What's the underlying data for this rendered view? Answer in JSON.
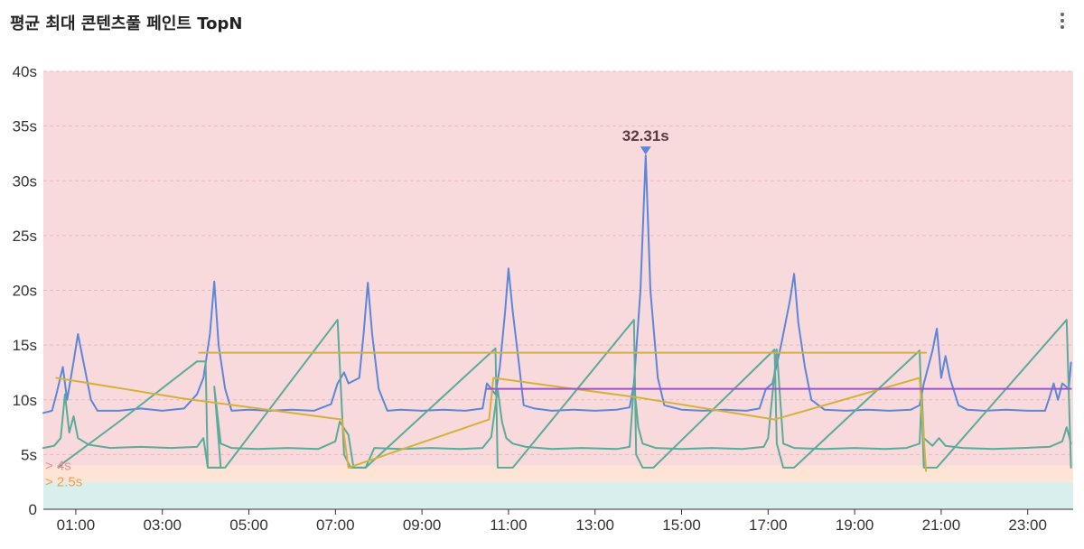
{
  "header": {
    "title": "평균 최대 콘텐츠풀 페인트 TopN"
  },
  "menu": {
    "icon": "more-vertical-icon"
  },
  "chart_data": {
    "type": "line",
    "title": "평균 최대 콘텐츠풀 페인트 TopN",
    "xlabel": "",
    "ylabel": "",
    "x_unit": "hour",
    "xlim": [
      0.25,
      24.05
    ],
    "ylim": [
      0,
      40
    ],
    "y_ticks": [
      "0",
      "5s",
      "10s",
      "15s",
      "20s",
      "25s",
      "30s",
      "35s",
      "40s"
    ],
    "x_ticks": [
      "01:00",
      "03:00",
      "05:00",
      "07:00",
      "09:00",
      "11:00",
      "13:00",
      "15:00",
      "17:00",
      "19:00",
      "21:00",
      "23:00"
    ],
    "grid": true,
    "bands": [
      {
        "from": 0,
        "to": 2.5,
        "color": "#d8efed"
      },
      {
        "from": 2.5,
        "to": 4,
        "color": "#fde4d4",
        "label": "> 2.5s",
        "label_color": "#f0a04a"
      },
      {
        "from": 4,
        "to": 40,
        "color": "#f8dadd",
        "label": "> 4s",
        "label_color": "#e8908f"
      }
    ],
    "peak_marker": {
      "label": "32.31s",
      "x": 14.17,
      "y": 32.31,
      "color": "#5b86d9"
    },
    "series": [
      {
        "color": "#5b86d9",
        "values": [
          [
            0.25,
            8.8
          ],
          [
            0.45,
            9.0
          ],
          [
            0.55,
            10.5
          ],
          [
            0.7,
            13.0
          ],
          [
            0.8,
            10.0
          ],
          [
            0.95,
            13.5
          ],
          [
            1.05,
            16.0
          ],
          [
            1.2,
            13.0
          ],
          [
            1.35,
            10.0
          ],
          [
            1.5,
            9.0
          ],
          [
            2.0,
            9.0
          ],
          [
            2.5,
            9.2
          ],
          [
            3.0,
            9.0
          ],
          [
            3.5,
            9.2
          ],
          [
            3.8,
            10.5
          ],
          [
            3.95,
            12.0
          ],
          [
            4.1,
            16.0
          ],
          [
            4.2,
            20.8
          ],
          [
            4.3,
            15.0
          ],
          [
            4.45,
            11.0
          ],
          [
            4.6,
            9.0
          ],
          [
            5.0,
            9.1
          ],
          [
            5.5,
            9.0
          ],
          [
            6.0,
            9.1
          ],
          [
            6.5,
            9.0
          ],
          [
            6.9,
            9.6
          ],
          [
            7.05,
            11.5
          ],
          [
            7.2,
            12.5
          ],
          [
            7.3,
            11.5
          ],
          [
            7.55,
            12.0
          ],
          [
            7.65,
            16.0
          ],
          [
            7.75,
            20.7
          ],
          [
            7.85,
            16.0
          ],
          [
            8.0,
            11.0
          ],
          [
            8.2,
            9.0
          ],
          [
            8.5,
            9.1
          ],
          [
            9.0,
            9.0
          ],
          [
            9.5,
            9.1
          ],
          [
            10.0,
            9.0
          ],
          [
            10.4,
            9.2
          ],
          [
            10.5,
            11.5
          ],
          [
            10.6,
            11.0
          ],
          [
            10.7,
            10.5
          ],
          [
            10.8,
            13.0
          ],
          [
            10.92,
            18.0
          ],
          [
            11.0,
            22.0
          ],
          [
            11.1,
            18.0
          ],
          [
            11.25,
            13.0
          ],
          [
            11.35,
            9.5
          ],
          [
            11.6,
            9.2
          ],
          [
            12.0,
            9.0
          ],
          [
            12.5,
            9.1
          ],
          [
            13.0,
            9.0
          ],
          [
            13.5,
            9.1
          ],
          [
            13.8,
            9.3
          ],
          [
            13.9,
            11.5
          ],
          [
            14.05,
            20.0
          ],
          [
            14.17,
            32.31
          ],
          [
            14.28,
            20.0
          ],
          [
            14.45,
            12.0
          ],
          [
            14.6,
            9.5
          ],
          [
            15.0,
            9.1
          ],
          [
            15.5,
            9.0
          ],
          [
            16.0,
            9.1
          ],
          [
            16.5,
            9.0
          ],
          [
            16.8,
            9.2
          ],
          [
            16.95,
            11.0
          ],
          [
            17.1,
            11.5
          ],
          [
            17.3,
            15.0
          ],
          [
            17.5,
            19.0
          ],
          [
            17.6,
            21.5
          ],
          [
            17.7,
            17.0
          ],
          [
            17.85,
            13.0
          ],
          [
            18.0,
            10.0
          ],
          [
            18.3,
            9.1
          ],
          [
            18.8,
            9.0
          ],
          [
            19.3,
            9.1
          ],
          [
            19.8,
            9.0
          ],
          [
            20.3,
            9.1
          ],
          [
            20.5,
            9.5
          ],
          [
            20.6,
            11.5
          ],
          [
            20.8,
            14.5
          ],
          [
            20.9,
            16.5
          ],
          [
            21.0,
            12.0
          ],
          [
            21.1,
            14.0
          ],
          [
            21.2,
            12.0
          ],
          [
            21.4,
            9.5
          ],
          [
            21.6,
            9.1
          ],
          [
            22.0,
            9.0
          ],
          [
            22.5,
            9.1
          ],
          [
            23.0,
            9.0
          ],
          [
            23.4,
            9.0
          ],
          [
            23.5,
            10.2
          ],
          [
            23.6,
            11.5
          ],
          [
            23.7,
            10.0
          ],
          [
            23.8,
            11.5
          ],
          [
            23.95,
            11.0
          ],
          [
            24.0,
            13.4
          ]
        ]
      },
      {
        "color": "#5aab98",
        "values": [
          [
            0.25,
            5.6
          ],
          [
            0.5,
            5.8
          ],
          [
            0.65,
            6.5
          ],
          [
            0.75,
            10.5
          ],
          [
            0.85,
            7.0
          ],
          [
            0.95,
            8.5
          ],
          [
            1.05,
            6.5
          ],
          [
            1.3,
            5.9
          ],
          [
            1.8,
            5.6
          ],
          [
            2.5,
            5.7
          ],
          [
            3.2,
            5.6
          ],
          [
            3.8,
            5.7
          ],
          [
            3.95,
            6.5
          ],
          [
            4.05,
            3.8
          ],
          [
            4.35,
            3.8
          ],
          [
            4.2,
            11.2
          ],
          [
            4.35,
            6.0
          ],
          [
            4.6,
            5.6
          ],
          [
            5.2,
            5.5
          ],
          [
            5.9,
            5.6
          ],
          [
            6.6,
            5.5
          ],
          [
            7.0,
            6.2
          ],
          [
            7.1,
            8.0
          ],
          [
            7.3,
            6.8
          ],
          [
            7.42,
            3.8
          ],
          [
            7.7,
            3.8
          ],
          [
            7.9,
            5.6
          ],
          [
            8.5,
            5.5
          ],
          [
            9.2,
            5.6
          ],
          [
            9.9,
            5.5
          ],
          [
            10.4,
            5.6
          ],
          [
            10.6,
            6.6
          ],
          [
            10.75,
            11.0
          ],
          [
            10.85,
            8.0
          ],
          [
            10.95,
            6.5
          ],
          [
            11.1,
            6.0
          ],
          [
            11.4,
            5.7
          ],
          [
            12.0,
            5.5
          ],
          [
            12.7,
            5.6
          ],
          [
            13.5,
            5.5
          ],
          [
            13.8,
            5.7
          ],
          [
            13.9,
            11.5
          ],
          [
            14.0,
            7.5
          ],
          [
            14.1,
            6.0
          ],
          [
            14.4,
            5.6
          ],
          [
            15.0,
            5.5
          ],
          [
            15.7,
            5.6
          ],
          [
            16.4,
            5.5
          ],
          [
            16.9,
            5.7
          ],
          [
            17.0,
            6.5
          ],
          [
            17.1,
            10.5
          ],
          [
            17.2,
            14.6
          ],
          [
            17.35,
            6.0
          ],
          [
            17.6,
            5.6
          ],
          [
            18.3,
            5.5
          ],
          [
            19.0,
            5.6
          ],
          [
            19.7,
            5.5
          ],
          [
            20.2,
            5.6
          ],
          [
            20.5,
            6.0
          ],
          [
            20.55,
            10.5
          ],
          [
            20.6,
            6.5
          ],
          [
            20.8,
            5.8
          ],
          [
            20.95,
            6.5
          ],
          [
            21.1,
            5.8
          ],
          [
            21.5,
            5.6
          ],
          [
            22.2,
            5.5
          ],
          [
            22.9,
            5.6
          ],
          [
            23.5,
            5.7
          ],
          [
            23.8,
            6.2
          ],
          [
            23.9,
            7.5
          ],
          [
            24.0,
            6.0
          ]
        ]
      },
      {
        "color": "#5aab98",
        "values": [
          [
            0.6,
            3.8
          ],
          [
            0.7,
            4.2
          ],
          [
            2.0,
            8.0
          ],
          [
            3.8,
            13.5
          ],
          [
            4.0,
            13.5
          ],
          [
            4.05,
            3.8
          ],
          [
            4.45,
            3.8
          ],
          [
            7.05,
            17.3
          ],
          [
            7.2,
            5.0
          ],
          [
            7.35,
            3.8
          ],
          [
            7.7,
            3.8
          ],
          [
            10.7,
            14.7
          ],
          [
            10.75,
            3.8
          ],
          [
            11.1,
            3.8
          ],
          [
            13.9,
            17.3
          ],
          [
            13.95,
            5.0
          ],
          [
            14.1,
            3.8
          ],
          [
            14.35,
            3.8
          ],
          [
            17.15,
            14.6
          ],
          [
            17.2,
            6.0
          ],
          [
            17.35,
            3.8
          ],
          [
            17.6,
            3.8
          ],
          [
            20.5,
            14.5
          ],
          [
            20.6,
            3.8
          ],
          [
            20.9,
            3.8
          ],
          [
            23.9,
            17.3
          ],
          [
            24.0,
            3.8
          ]
        ]
      },
      {
        "color": "#d4b13b",
        "values": [
          [
            0.55,
            12.0
          ],
          [
            3.5,
            10.1
          ],
          [
            7.15,
            8.2
          ],
          [
            7.3,
            3.8
          ],
          [
            10.55,
            8.2
          ],
          [
            10.65,
            12.0
          ],
          [
            14.0,
            10.2
          ],
          [
            17.15,
            8.2
          ],
          [
            20.5,
            12.0
          ],
          [
            20.65,
            3.5
          ]
        ]
      },
      {
        "color": "#d4b13b",
        "values": [
          [
            3.85,
            14.3
          ],
          [
            20.65,
            14.3
          ]
        ]
      },
      {
        "color": "#a04fd8",
        "values": [
          [
            10.5,
            11.0
          ],
          [
            24.0,
            11.0
          ]
        ]
      }
    ]
  }
}
